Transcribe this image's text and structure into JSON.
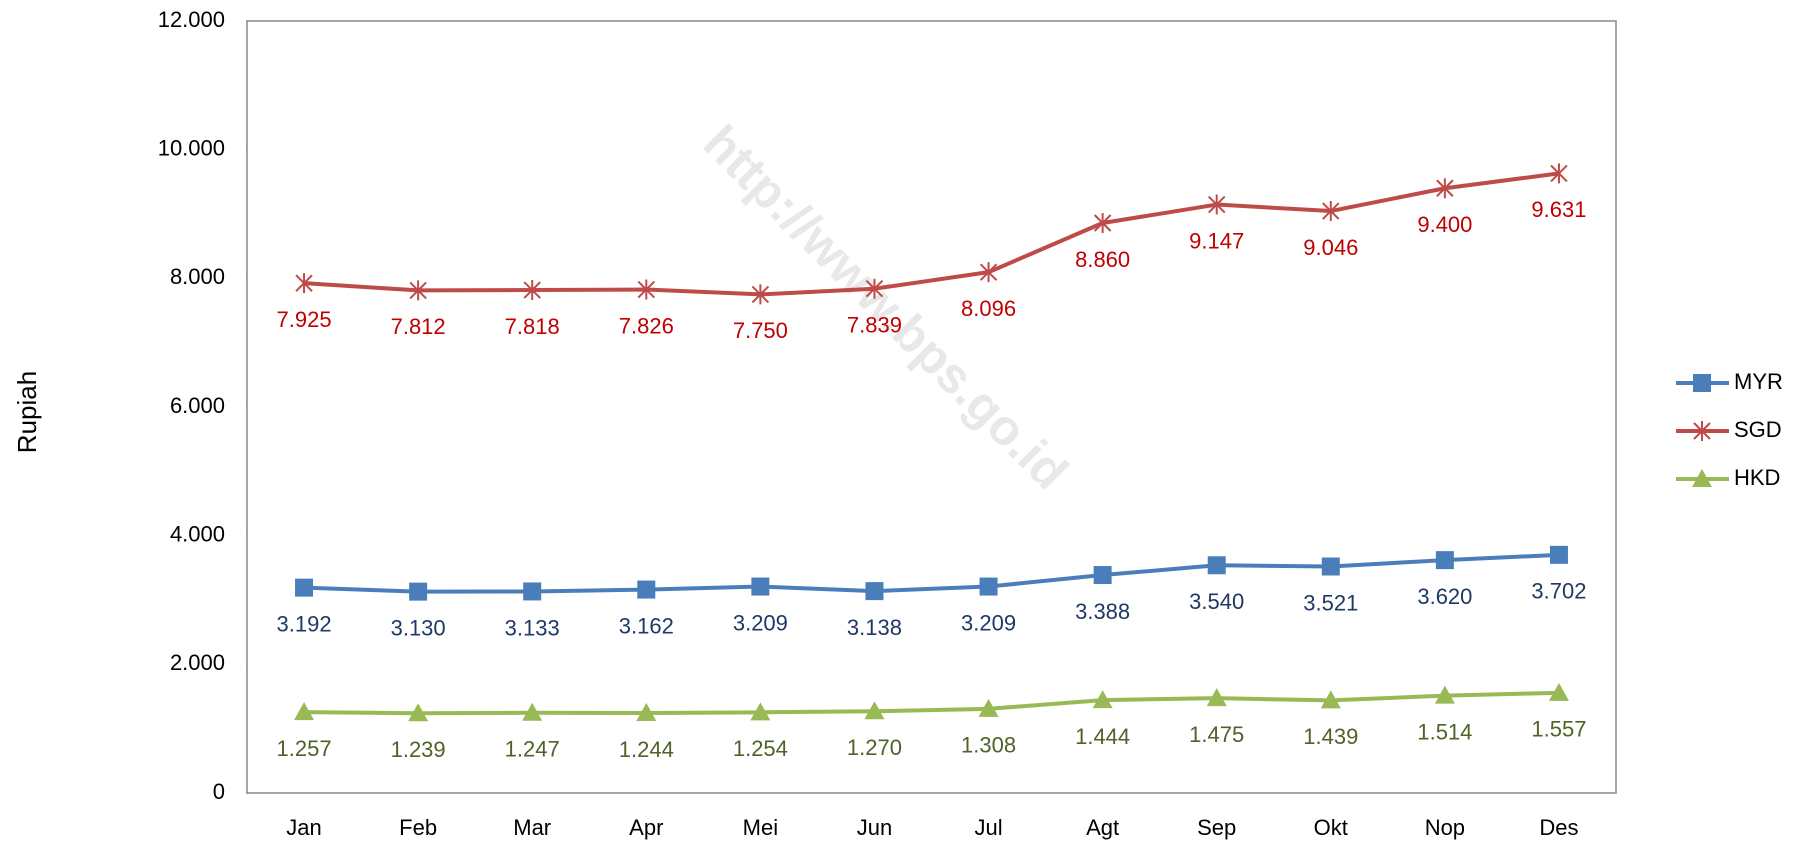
{
  "chart_data": {
    "type": "line",
    "y_label": "Rupiah",
    "watermark": "http://www.bps.go.id",
    "categories": [
      "Jan",
      "Feb",
      "Mar",
      "Apr",
      "Mei",
      "Jun",
      "Jul",
      "Agt",
      "Sep",
      "Okt",
      "Nop",
      "Des"
    ],
    "series": [
      {
        "name": "MYR",
        "color": "#4a7ebb",
        "label_color": "#1f3864",
        "marker": "square",
        "values": [
          3192,
          3130,
          3133,
          3162,
          3209,
          3138,
          3209,
          3388,
          3540,
          3521,
          3620,
          3702
        ],
        "value_labels": [
          "3.192",
          "3.130",
          "3.133",
          "3.162",
          "3.209",
          "3.138",
          "3.209",
          "3.388",
          "3.540",
          "3.521",
          "3.620",
          "3.702"
        ]
      },
      {
        "name": "SGD",
        "color": "#be4b48",
        "label_color": "#c00000",
        "marker": "star",
        "values": [
          7925,
          7812,
          7818,
          7826,
          7750,
          7839,
          8096,
          8860,
          9147,
          9046,
          9400,
          9631
        ],
        "value_labels": [
          "7.925",
          "7.812",
          "7.818",
          "7.826",
          "7.750",
          "7.839",
          "8.096",
          "8.860",
          "9.147",
          "9.046",
          "9.400",
          "9.631"
        ]
      },
      {
        "name": "HKD",
        "color": "#98b954",
        "label_color": "#4f6228",
        "marker": "triangle",
        "values": [
          1257,
          1239,
          1247,
          1244,
          1254,
          1270,
          1308,
          1444,
          1475,
          1439,
          1514,
          1557
        ],
        "value_labels": [
          "1.257",
          "1.239",
          "1.247",
          "1.244",
          "1.254",
          "1.270",
          "1.308",
          "1.444",
          "1.475",
          "1.439",
          "1.514",
          "1.557"
        ]
      }
    ],
    "ylim": [
      0,
      12000
    ],
    "yticks": [
      0,
      {
        "value": 2000,
        "label": "2.000"
      },
      {
        "value": 4000,
        "label": "4.000"
      },
      {
        "value": 6000,
        "label": "6.000"
      },
      {
        "value": 8000,
        "label": "8.000"
      },
      {
        "value": 10000,
        "label": "10.000"
      },
      {
        "value": 12000,
        "label": "12.000"
      }
    ],
    "grid": false,
    "legend": "right"
  }
}
